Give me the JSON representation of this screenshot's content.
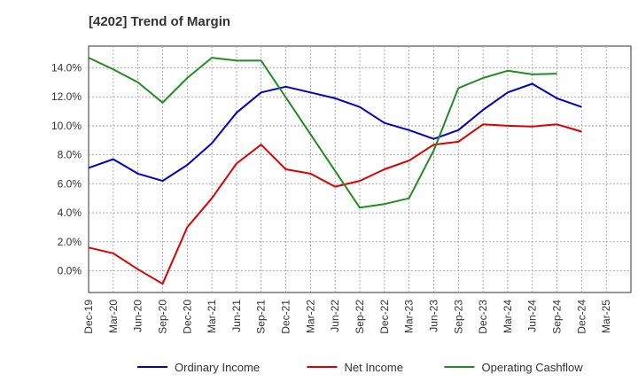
{
  "chart_data": {
    "type": "line",
    "title": "[4202]  Trend of Margin",
    "xlabel": "",
    "ylabel": "",
    "categories": [
      "Dec-19",
      "Mar-20",
      "Jun-20",
      "Sep-20",
      "Dec-20",
      "Mar-21",
      "Jun-21",
      "Sep-21",
      "Dec-21",
      "Mar-22",
      "Jun-22",
      "Sep-22",
      "Dec-22",
      "Mar-23",
      "Jun-23",
      "Sep-23",
      "Dec-23",
      "Mar-24",
      "Jun-24",
      "Sep-24",
      "Dec-24",
      "Mar-25"
    ],
    "yticks": [
      "0.0%",
      "2.0%",
      "4.0%",
      "6.0%",
      "8.0%",
      "10.0%",
      "12.0%",
      "14.0%"
    ],
    "ylim": [
      -1.5,
      15.5
    ],
    "grid": true,
    "legend_position": "bottom",
    "series": [
      {
        "name": "Ordinary Income",
        "color": "#0000cc",
        "values": [
          7.1,
          7.7,
          6.7,
          6.2,
          7.3,
          8.8,
          10.9,
          12.3,
          12.7,
          12.3,
          11.9,
          11.3,
          10.2,
          9.7,
          9.1,
          9.7,
          11.1,
          12.3,
          12.9,
          11.9,
          11.3,
          null
        ]
      },
      {
        "name": "Net Income",
        "color": "#dd0000",
        "values": [
          1.6,
          1.2,
          0.1,
          -0.9,
          3.0,
          5.0,
          7.4,
          8.7,
          7.0,
          6.7,
          5.8,
          6.2,
          7.0,
          7.6,
          8.7,
          8.9,
          10.1,
          10.0,
          9.95,
          10.1,
          9.6,
          null
        ]
      },
      {
        "name": "Operating Cashflow",
        "color": "#228B22",
        "values": [
          14.7,
          13.9,
          13.0,
          11.6,
          13.3,
          14.7,
          14.5,
          14.5,
          null,
          null,
          null,
          4.35,
          4.6,
          5.0,
          8.3,
          12.6,
          13.3,
          13.8,
          13.55,
          13.6,
          null,
          null
        ]
      }
    ]
  }
}
